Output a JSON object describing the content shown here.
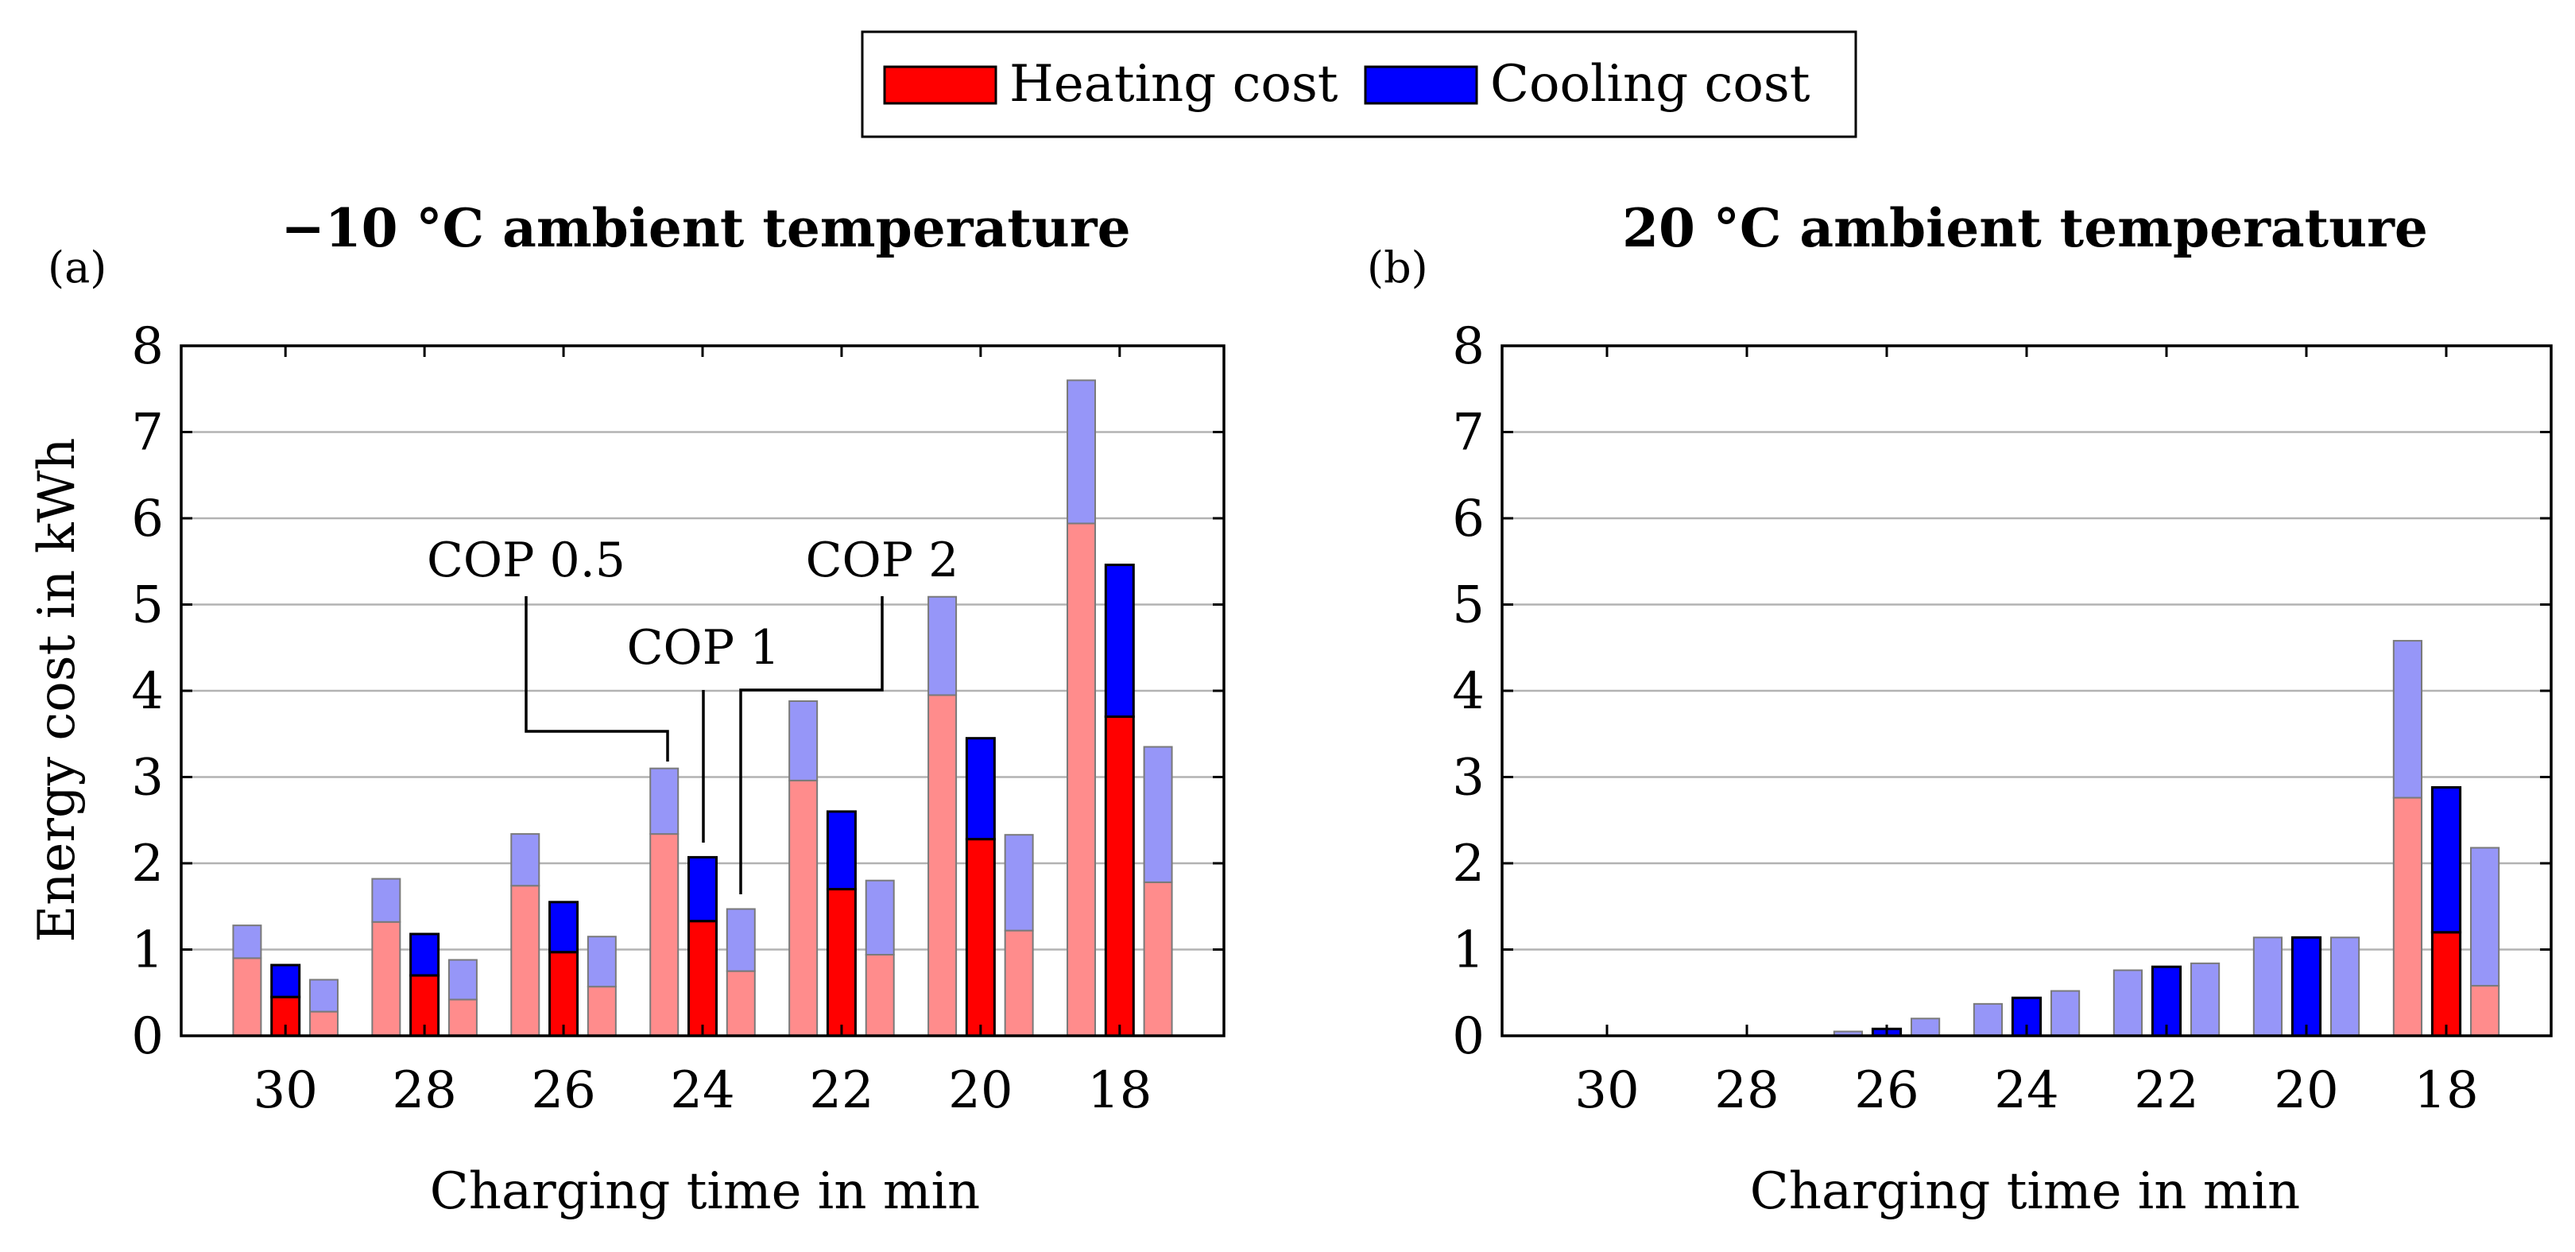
{
  "legend": {
    "entries": [
      {
        "label": "Heating cost",
        "color": "#ff0000"
      },
      {
        "label": "Cooling cost",
        "color": "#0000ff"
      }
    ]
  },
  "chart_data": [
    {
      "type": "bar",
      "stacked": true,
      "panel_letter": "(a)",
      "title": "−10 °C ambient temperature",
      "xlabel": "Charging time in min",
      "ylabel": "Energy cost in kWh",
      "ylim": [
        0,
        8
      ],
      "yticks": [
        "0",
        "1",
        "2",
        "3",
        "4",
        "5",
        "6",
        "7",
        "8"
      ],
      "grid": true,
      "categories": [
        "30",
        "28",
        "26",
        "24",
        "22",
        "20",
        "18"
      ],
      "groups": [
        "COP 0.5",
        "COP 1",
        "COP 2"
      ],
      "series": [
        {
          "name": "Heating cost",
          "group": "COP 0.5",
          "values": [
            0.9,
            1.32,
            1.74,
            2.34,
            2.96,
            3.95,
            5.94
          ]
        },
        {
          "name": "Cooling cost",
          "group": "COP 0.5",
          "values": [
            0.38,
            0.5,
            0.6,
            0.76,
            0.92,
            1.14,
            1.66
          ]
        },
        {
          "name": "Heating cost",
          "group": "COP 1",
          "values": [
            0.45,
            0.7,
            0.97,
            1.33,
            1.7,
            2.28,
            3.7
          ]
        },
        {
          "name": "Cooling cost",
          "group": "COP 1",
          "values": [
            0.37,
            0.48,
            0.58,
            0.74,
            0.9,
            1.17,
            1.76
          ]
        },
        {
          "name": "Heating cost",
          "group": "COP 2",
          "values": [
            0.28,
            0.42,
            0.57,
            0.75,
            0.94,
            1.22,
            1.78
          ]
        },
        {
          "name": "Cooling cost",
          "group": "COP 2",
          "values": [
            0.37,
            0.46,
            0.58,
            0.72,
            0.86,
            1.11,
            1.57
          ]
        }
      ],
      "annotations": [
        "COP 0.5",
        "COP 1",
        "COP 2"
      ]
    },
    {
      "type": "bar",
      "stacked": true,
      "panel_letter": "(b)",
      "title": "20 °C ambient temperature",
      "xlabel": "Charging time in min",
      "ylabel": "",
      "ylim": [
        0,
        8
      ],
      "yticks": [
        "0",
        "1",
        "2",
        "3",
        "4",
        "5",
        "6",
        "7",
        "8"
      ],
      "grid": true,
      "categories": [
        "30",
        "28",
        "26",
        "24",
        "22",
        "20",
        "18"
      ],
      "groups": [
        "COP 0.5",
        "COP 1",
        "COP 2"
      ],
      "series": [
        {
          "name": "Heating cost",
          "group": "COP 0.5",
          "values": [
            0,
            0,
            0,
            0,
            0,
            0,
            2.76
          ]
        },
        {
          "name": "Cooling cost",
          "group": "COP 0.5",
          "values": [
            0,
            0,
            0.05,
            0.37,
            0.76,
            1.14,
            1.82
          ]
        },
        {
          "name": "Heating cost",
          "group": "COP 1",
          "values": [
            0,
            0,
            0,
            0,
            0,
            0,
            1.2
          ]
        },
        {
          "name": "Cooling cost",
          "group": "COP 1",
          "values": [
            0,
            0,
            0.08,
            0.44,
            0.8,
            1.14,
            1.68
          ]
        },
        {
          "name": "Heating cost",
          "group": "COP 2",
          "values": [
            0,
            0,
            0,
            0,
            0,
            0,
            0.58
          ]
        },
        {
          "name": "Cooling cost",
          "group": "COP 2",
          "values": [
            0,
            0,
            0.2,
            0.52,
            0.84,
            1.14,
            1.6
          ]
        }
      ],
      "annotations": []
    }
  ],
  "colors": {
    "heating_strong": "#ff0000",
    "cooling_strong": "#0000ff",
    "heating_light": "#ff8c8c",
    "cooling_light": "#9696f8"
  }
}
